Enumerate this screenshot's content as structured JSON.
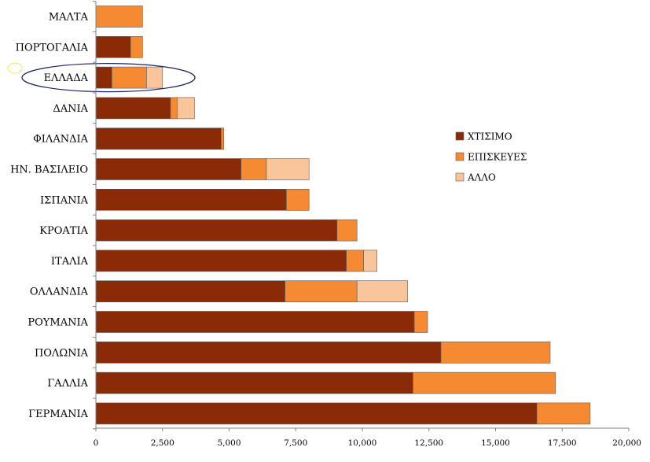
{
  "chart_data": {
    "type": "bar",
    "orientation": "horizontal",
    "stacked": true,
    "categories": [
      "ΜΑΛΤΑ",
      "ΠΟΡΤΟΓΑΛΙΑ",
      "ΕΛΛΑΔΑ",
      "ΔΑΝΙΑ",
      "ΦΙΛΑΝΔΙΑ",
      "ΗΝ. ΒΑΣΙΛΕΙΟ",
      "ΙΣΠΑΝΙΑ",
      "ΚΡΟΑΤΙΑ",
      "ΙΤΑΛΙΑ",
      "ΟΛΛΑΝΔΙΑ",
      "ΡΟΥΜΑΝΙΑ",
      "ΠΟΛΩΝΙΑ",
      "ΓΑΛΛΙΑ",
      "ΓΕΡΜΑΝΙΑ"
    ],
    "series": [
      {
        "name": "ΧΤΙΣΙΜΟ",
        "color": "#8B2A07",
        "values": [
          0,
          1300,
          600,
          2800,
          4700,
          5450,
          7150,
          9050,
          9400,
          7100,
          11950,
          12950,
          11900,
          16550
        ]
      },
      {
        "name": "ΕΠΙΣΚΕΥΕΣ",
        "color": "#F58A33",
        "values": [
          1750,
          450,
          1300,
          250,
          100,
          950,
          850,
          750,
          650,
          2700,
          500,
          4100,
          5350,
          2000
        ]
      },
      {
        "name": "ΑΛΛΟ",
        "color": "#FAC59A",
        "values": [
          0,
          0,
          600,
          650,
          0,
          1600,
          0,
          0,
          500,
          1900,
          0,
          0,
          0,
          0
        ]
      }
    ],
    "xlim": [
      0,
      20000
    ],
    "xticks": [
      "0",
      "2,500",
      "5,000",
      "7,500",
      "10,000",
      "12,500",
      "15,000",
      "17,500",
      "20,000"
    ],
    "grid": false,
    "legend_position": "right",
    "highlighted_category": "ΕΛΛΑΔΑ"
  }
}
